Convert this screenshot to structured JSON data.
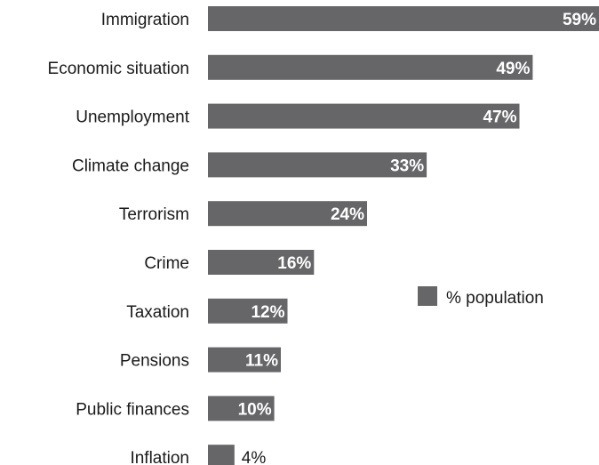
{
  "chart_data": {
    "type": "bar",
    "orientation": "horizontal",
    "categories": [
      "Immigration",
      "Economic situation",
      "Unemployment",
      "Climate change",
      "Terrorism",
      "Crime",
      "Taxation",
      "Pensions",
      "Public finances",
      "Inflation"
    ],
    "series": [
      {
        "name": "% population",
        "values": [
          59,
          49,
          47,
          33,
          24,
          16,
          12,
          11,
          10,
          4
        ],
        "labels": [
          "59%",
          "49%",
          "47%",
          "33%",
          "24%",
          "16%",
          "12%",
          "11%",
          "10%",
          "4%"
        ]
      }
    ],
    "xlim": [
      0,
      59
    ],
    "grid": false,
    "legend": {
      "placement": "right",
      "entries": [
        "% population"
      ]
    }
  },
  "colors": {
    "bar": "#666669",
    "text": "#1a1a1a",
    "inner_label": "#ffffff"
  }
}
